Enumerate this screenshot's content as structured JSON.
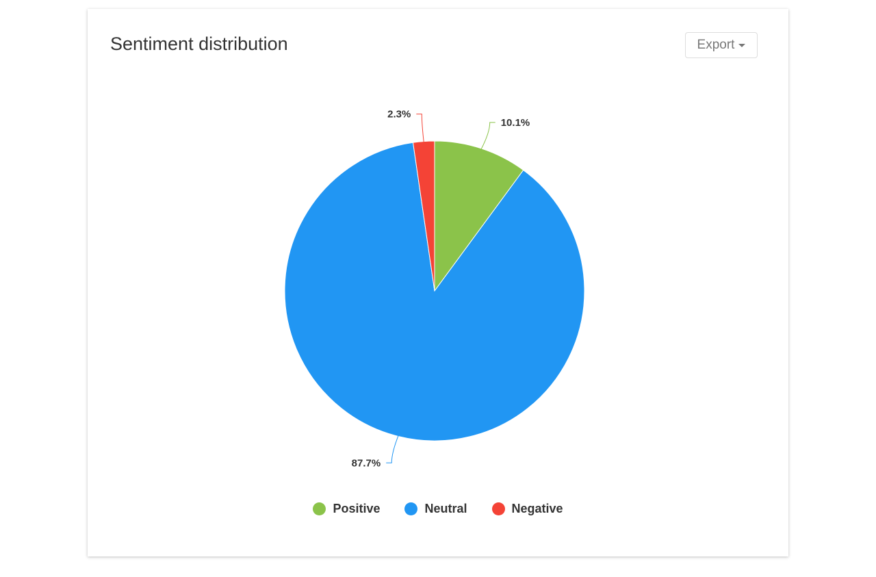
{
  "card": {
    "export_label": "Export"
  },
  "chart_data": {
    "type": "pie",
    "title": "Sentiment distribution",
    "start_angle": "top, clockwise",
    "legend_position": "bottom",
    "slices": [
      {
        "name": "Positive",
        "value": 10.1,
        "label": "10.1%",
        "color": "#8bc34a"
      },
      {
        "name": "Neutral",
        "value": 87.7,
        "label": "87.7%",
        "color": "#2196f3"
      },
      {
        "name": "Negative",
        "value": 2.3,
        "label": "2.3%",
        "color": "#f44336"
      }
    ]
  }
}
